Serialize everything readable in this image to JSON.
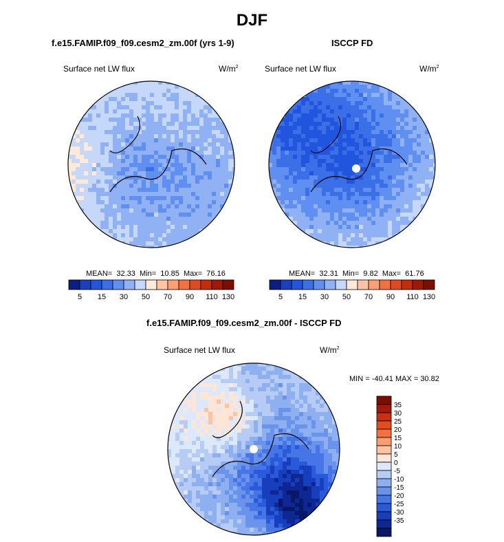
{
  "page": {
    "title": "DJF",
    "left_panel_title": "f.e15.FAMIP.f09_f09.cesm2_zm.00f (yrs 1-9)",
    "right_panel_title": "ISCCP FD",
    "diff_panel_title": "f.e15.FAMIP.f09_f09.cesm2_zm.00f - ISCCP FD"
  },
  "chart_data": [
    {
      "type": "heatmap",
      "projection": "north-polar-stereographic",
      "title": "f.e15.FAMIP.f09_f09.cesm2_zm.00f (yrs 1-9)",
      "variable": "Surface net LW flux",
      "units_base": "W/m",
      "units_exp": "2",
      "stats": {
        "mean_label": "MEAN=",
        "mean": "32.33",
        "min_label": "Min=",
        "min": "10.85",
        "max_label": "Max=",
        "max": "76.16"
      },
      "colorbar_ticks": [
        "5",
        "15",
        "30",
        "50",
        "70",
        "90",
        "110",
        "130"
      ]
    },
    {
      "type": "heatmap",
      "projection": "north-polar-stereographic",
      "title": "ISCCP FD",
      "variable": "Surface net LW flux",
      "units_base": "W/m",
      "units_exp": "2",
      "stats": {
        "mean_label": "MEAN=",
        "mean": "32.31",
        "min_label": "Min=",
        "min": "9.82",
        "max_label": "Max=",
        "max": "61.76"
      },
      "colorbar_ticks": [
        "5",
        "15",
        "30",
        "50",
        "70",
        "90",
        "110",
        "130"
      ]
    },
    {
      "type": "heatmap",
      "projection": "north-polar-stereographic",
      "title": "f.e15.FAMIP.f09_f09.cesm2_zm.00f - ISCCP FD",
      "variable": "Surface net LW flux",
      "units_base": "W/m",
      "units_exp": "2",
      "stats_text": "MIN = -40.41 MAX =  30.82",
      "colorbar_ticks": [
        "35",
        "30",
        "25",
        "20",
        "15",
        "10",
        "5",
        "0",
        "-5",
        "-10",
        "-15",
        "-20",
        "-25",
        "-30",
        "-35"
      ]
    }
  ],
  "colors": {
    "seq_palette": [
      "#0b1e86",
      "#1a3fc0",
      "#2255dd",
      "#3a6fe8",
      "#5f8ff0",
      "#90b2f5",
      "#c6d8fa",
      "#ffe9d9",
      "#ffc4a3",
      "#ff9f73",
      "#f4713f",
      "#e14a1e",
      "#c52c0a",
      "#9e1a05",
      "#7a0e02"
    ],
    "div_palette": [
      "#7a0e02",
      "#a31905",
      "#c83010",
      "#e54d1f",
      "#f77040",
      "#fc9d70",
      "#fec3a0",
      "#fde6d5",
      "#dce8fb",
      "#b6ccf5",
      "#8fb0f0",
      "#6a93ec",
      "#4676e6",
      "#2a5ada",
      "#173ebc",
      "#0e2793",
      "#081868"
    ]
  }
}
